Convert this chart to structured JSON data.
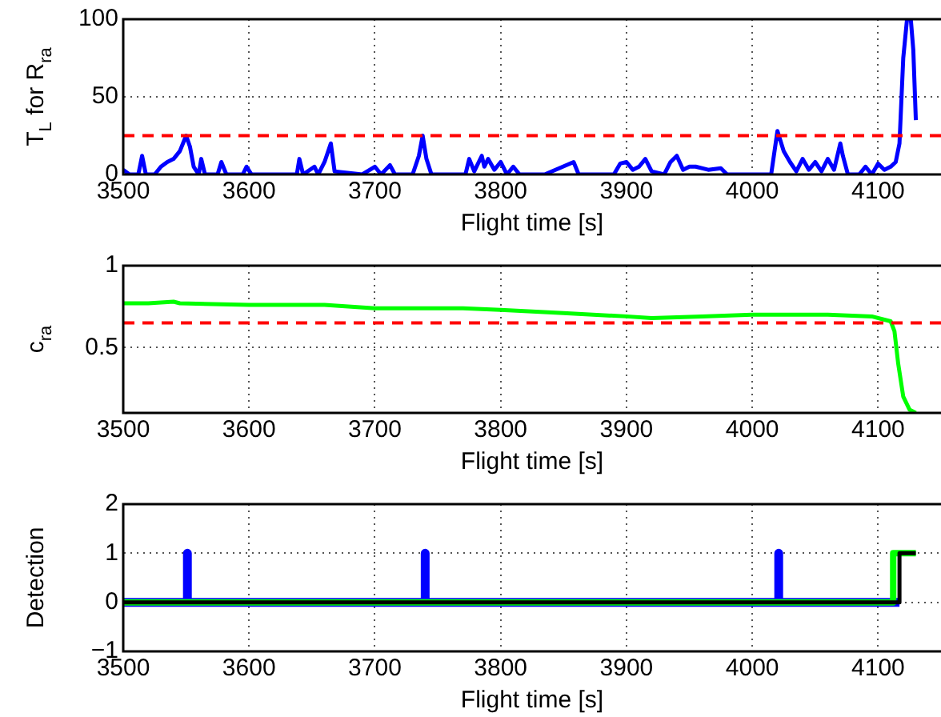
{
  "chart_data": [
    {
      "type": "line",
      "xlabel": "Flight time [s]",
      "ylabel": "T$_{L}$ for R$_{ra}$",
      "xlim": [
        3500,
        4150
      ],
      "xticks": [
        3500,
        3600,
        3700,
        3800,
        3900,
        4000,
        4100
      ],
      "ylim": [
        0,
        100
      ],
      "yticks": [
        0,
        50,
        100
      ],
      "grid": true,
      "marker": "none",
      "ref_lines": [
        {
          "axis": "y",
          "value": 25,
          "color": "#ff0000",
          "line_style": "dashed"
        }
      ],
      "series": [
        {
          "color": "#0000ff",
          "x": [
            3500,
            3505,
            3512,
            3515,
            3518,
            3525,
            3530,
            3535,
            3540,
            3545,
            3550,
            3553,
            3556,
            3560,
            3562,
            3565,
            3575,
            3578,
            3582,
            3595,
            3598,
            3602,
            3620,
            3638,
            3640,
            3643,
            3652,
            3655,
            3660,
            3665,
            3668,
            3690,
            3700,
            3705,
            3712,
            3716,
            3730,
            3735,
            3738,
            3741,
            3745,
            3760,
            3772,
            3775,
            3779,
            3785,
            3787,
            3790,
            3795,
            3800,
            3805,
            3810,
            3815,
            3835,
            3858,
            3862,
            3890,
            3895,
            3900,
            3905,
            3910,
            3915,
            3920,
            3930,
            3935,
            3940,
            3945,
            3950,
            3955,
            3965,
            3975,
            3980,
            4010,
            4015,
            4020,
            4025,
            4030,
            4035,
            4040,
            4045,
            4050,
            4055,
            4060,
            4065,
            4070,
            4072,
            4076,
            4085,
            4090,
            4095,
            4100,
            4105,
            4110,
            4114,
            4117,
            4120,
            4123,
            4126,
            4128,
            4130
          ],
          "values": [
            3,
            0,
            0,
            12,
            0,
            0,
            5,
            8,
            10,
            15,
            25,
            18,
            5,
            0,
            10,
            0,
            0,
            8,
            0,
            0,
            5,
            0,
            0,
            0,
            10,
            0,
            5,
            0,
            8,
            20,
            2,
            0,
            5,
            0,
            6,
            0,
            0,
            12,
            25,
            10,
            0,
            0,
            0,
            10,
            2,
            12,
            5,
            10,
            3,
            8,
            0,
            5,
            0,
            0,
            8,
            0,
            0,
            7,
            8,
            3,
            5,
            10,
            2,
            0,
            8,
            12,
            3,
            5,
            5,
            3,
            4,
            0,
            0,
            0,
            28,
            15,
            8,
            2,
            10,
            3,
            8,
            2,
            10,
            3,
            20,
            12,
            0,
            0,
            5,
            0,
            7,
            3,
            5,
            8,
            20,
            75,
            100,
            100,
            80,
            35
          ]
        }
      ]
    },
    {
      "type": "line",
      "xlabel": "Flight time [s]",
      "ylabel": "c$_{ra}$",
      "xlim": [
        3500,
        4150
      ],
      "xticks": [
        3500,
        3600,
        3700,
        3800,
        3900,
        4000,
        4100
      ],
      "ylim": [
        0.1,
        1
      ],
      "yticks": [
        0.5,
        1
      ],
      "grid": true,
      "marker": "none",
      "ref_lines": [
        {
          "axis": "y",
          "value": 0.65,
          "color": "#ff0000",
          "line_style": "dashed"
        }
      ],
      "series": [
        {
          "color": "#00ff00",
          "x": [
            3500,
            3520,
            3540,
            3545,
            3600,
            3660,
            3700,
            3770,
            3800,
            3850,
            3900,
            3920,
            3960,
            4000,
            4060,
            4095,
            4105,
            4110,
            4113,
            4116,
            4120,
            4125,
            4130
          ],
          "values": [
            0.77,
            0.77,
            0.78,
            0.77,
            0.76,
            0.76,
            0.74,
            0.74,
            0.73,
            0.71,
            0.69,
            0.68,
            0.69,
            0.7,
            0.7,
            0.69,
            0.67,
            0.66,
            0.6,
            0.4,
            0.2,
            0.12,
            0.1
          ]
        }
      ]
    },
    {
      "type": "line",
      "xlabel": "Flight time [s]",
      "ylabel": "Detection",
      "xlim": [
        3500,
        4150
      ],
      "xticks": [
        3500,
        3600,
        3700,
        3800,
        3900,
        4000,
        4100
      ],
      "ylim": [
        -1,
        2
      ],
      "yticks": [
        {
          "value": -1,
          "label": "−1"
        },
        0,
        1,
        2
      ],
      "grid": true,
      "marker": "none",
      "series": [
        {
          "color": "#0000ff",
          "x": [
            3500,
            3551,
            3551,
            3551,
            3740,
            3740,
            3740,
            4021,
            4021,
            4021,
            4117
          ],
          "values": [
            0,
            0,
            1,
            0,
            0,
            1,
            0,
            0,
            1,
            0,
            0
          ]
        },
        {
          "color": "#00ff00",
          "x": [
            3500,
            4112,
            4112,
            4130
          ],
          "values": [
            0,
            0,
            1,
            1
          ]
        },
        {
          "color": "#000000",
          "x": [
            3500,
            4117,
            4117,
            4130
          ],
          "values": [
            0,
            0,
            1,
            1
          ]
        }
      ]
    }
  ]
}
